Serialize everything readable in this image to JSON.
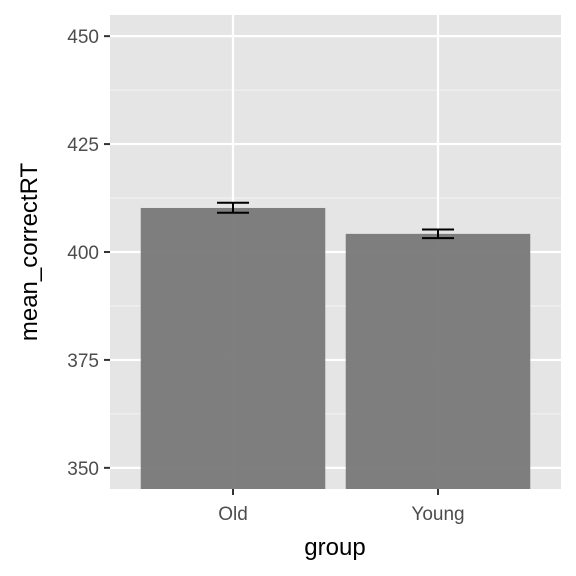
{
  "chart_data": {
    "type": "bar",
    "categories": [
      "Old",
      "Young"
    ],
    "values": [
      410.2,
      404.2
    ],
    "error_bars": [
      {
        "low": 409.1,
        "high": 411.4
      },
      {
        "low": 403.2,
        "high": 405.2
      }
    ],
    "xlabel": "group",
    "ylabel": "mean_correctRT",
    "ylim": [
      345.1,
      454.9
    ],
    "yticks": [
      350,
      375,
      400,
      425,
      450
    ],
    "grid": true,
    "panel_background": "#e5e5e5",
    "bar_color": "#7a7a7a",
    "error_bar_color": "#000000"
  }
}
